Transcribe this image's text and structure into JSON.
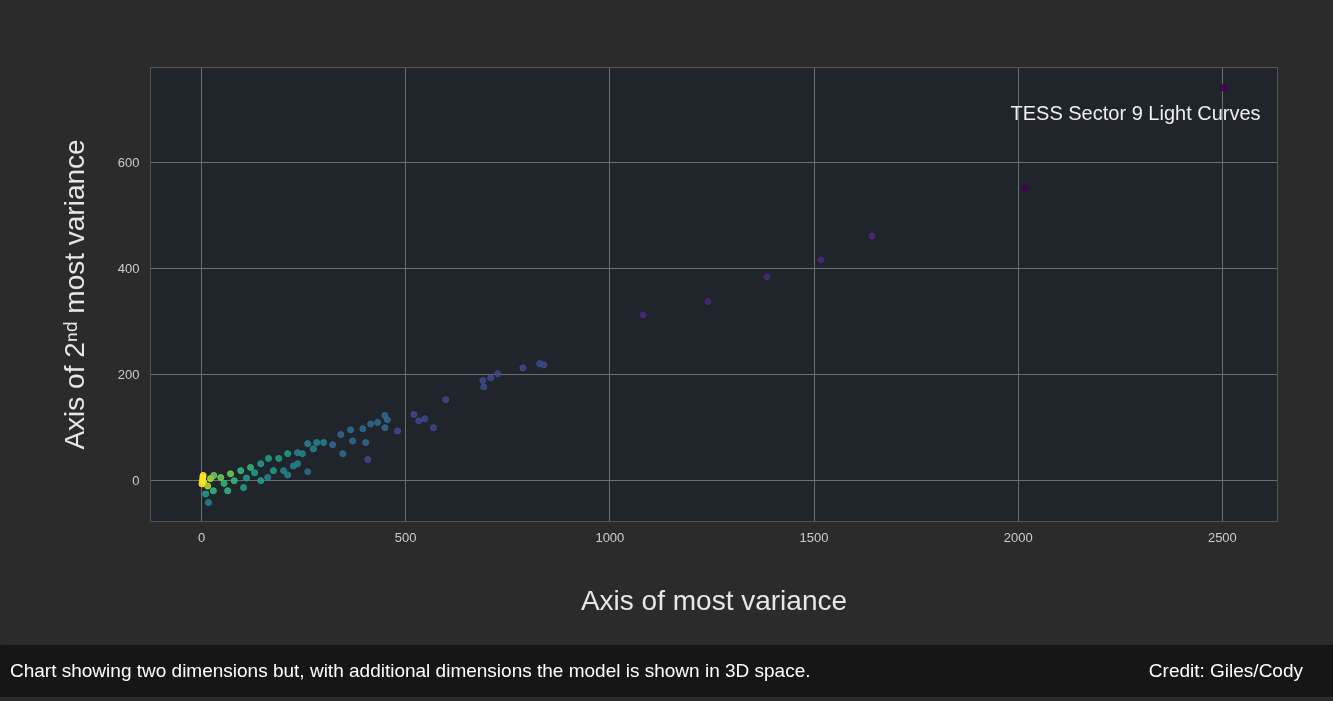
{
  "chart_data": {
    "type": "scatter",
    "title": "TESS Sector 9 Light Curves",
    "xlabel": "Axis of most variance",
    "ylabel": "Axis of 2ⁿᵈ most variance",
    "x": [
      2,
      3,
      1,
      4,
      5,
      17,
      10,
      15,
      22,
      30,
      29,
      47,
      55,
      64,
      71,
      80,
      96,
      103,
      110,
      120,
      130,
      145,
      145,
      164,
      162,
      176,
      189,
      201,
      211,
      211,
      225,
      235,
      235,
      247,
      260,
      260,
      274,
      282,
      299,
      321,
      341,
      346,
      365,
      370,
      395,
      402,
      407,
      414,
      431,
      449,
      455,
      449,
      480,
      520,
      532,
      547,
      568,
      598,
      689,
      691,
      708,
      725,
      787,
      828,
      838,
      1081,
      1240,
      1385,
      1517,
      1642,
      2017,
      2502
    ],
    "values": [
      0,
      6,
      -6,
      10,
      -3,
      -41,
      -25,
      -10,
      4,
      10,
      -19,
      6,
      -5,
      -19,
      13,
      0,
      19,
      -13,
      5,
      25,
      15,
      32,
      0,
      42,
      6,
      19,
      42,
      19,
      51,
      11,
      28,
      53,
      32,
      51,
      70,
      17,
      60,
      72,
      72,
      68,
      87,
      51,
      96,
      75,
      98,
      72,
      40,
      107,
      110,
      123,
      115,
      100,
      94,
      125,
      113,
      117,
      100,
      153,
      189,
      177,
      194,
      202,
      213,
      221,
      219,
      313,
      338,
      385,
      417,
      462,
      553,
      742
    ],
    "colors": [
      "#fde725",
      "#fde725",
      "#fde725",
      "#fde725",
      "#fde725",
      "#26828e",
      "#1f9e89",
      "#b5de2b",
      "#b5de2b",
      "#6ece58",
      "#35b779",
      "#6ece58",
      "#35b779",
      "#35b779",
      "#6ece58",
      "#35b779",
      "#35b779",
      "#1f9e89",
      "#1f9e89",
      "#35b779",
      "#1f9e89",
      "#1f9e89",
      "#1f9e89",
      "#1f9e89",
      "#26828e",
      "#1f9e89",
      "#1f9e89",
      "#26828e",
      "#1f9e89",
      "#26828e",
      "#26828e",
      "#26828e",
      "#26828e",
      "#26828e",
      "#26828e",
      "#31688e",
      "#26828e",
      "#26828e",
      "#26828e",
      "#31688e",
      "#31688e",
      "#31688e",
      "#31688e",
      "#31688e",
      "#31688e",
      "#31688e",
      "#3e4989",
      "#31688e",
      "#31688e",
      "#31688e",
      "#31688e",
      "#31688e",
      "#3e4989",
      "#3e4989",
      "#3e4989",
      "#3e4989",
      "#3e4989",
      "#3e4989",
      "#3e4989",
      "#3e4989",
      "#3e4989",
      "#3e4989",
      "#3e4989",
      "#3e4989",
      "#3e4989",
      "#482878",
      "#482878",
      "#482878",
      "#482878",
      "#482878",
      "#440154",
      "#440154"
    ],
    "xlim": [
      -125,
      2635
    ],
    "ylim": [
      -77,
      780
    ],
    "xticks": [
      0,
      500,
      1000,
      1500,
      2000,
      2500
    ],
    "yticks": [
      0,
      200,
      400,
      600
    ],
    "grid": true,
    "marker": "circle",
    "annotations": [
      "Chart showing two dimensions but, with additional dimensions the model is shown in 3D space.",
      "Credit: Giles/Cody"
    ]
  }
}
